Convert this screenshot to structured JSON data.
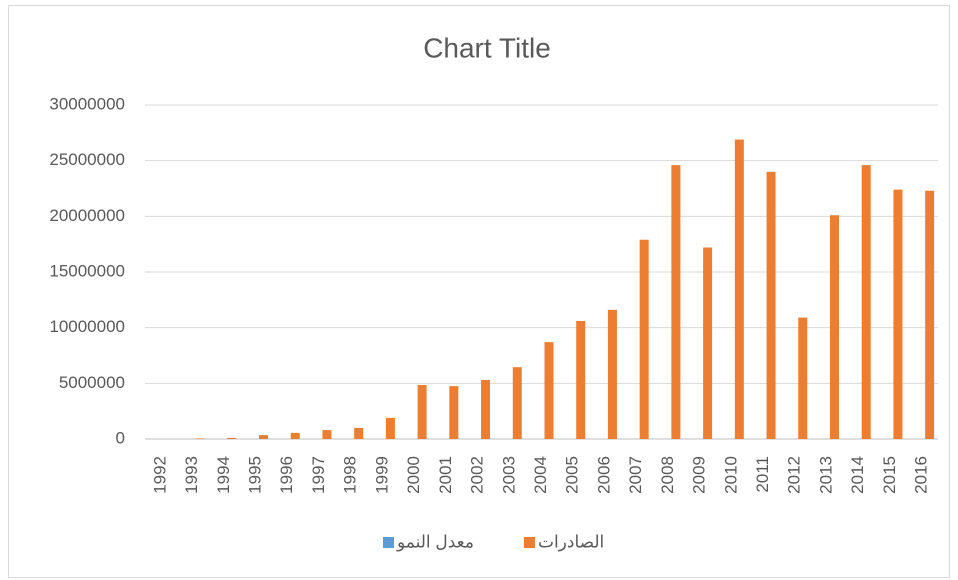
{
  "chart_data": {
    "type": "bar",
    "title": "Chart Title",
    "categories": [
      "1992",
      "1993",
      "1994",
      "1995",
      "1996",
      "1997",
      "1998",
      "1999",
      "2000",
      "2001",
      "2002",
      "2003",
      "2004",
      "2005",
      "2006",
      "2007",
      "2008",
      "2009",
      "2010",
      "2011",
      "2012",
      "2013",
      "2014",
      "2015",
      "2016"
    ],
    "series": [
      {
        "name": "معدل النمو",
        "color": "#5b9bd5",
        "values": [
          0,
          0,
          0,
          0,
          0,
          0,
          0,
          0,
          0,
          0,
          0,
          0,
          0,
          0,
          0,
          0,
          0,
          0,
          0,
          0,
          0,
          0,
          0,
          0,
          0
        ]
      },
      {
        "name": "الصادرات",
        "color": "#ed7d31",
        "values": [
          0,
          50000,
          100000,
          350000,
          550000,
          800000,
          1000000,
          1900000,
          4850000,
          4750000,
          5300000,
          6450000,
          8700000,
          10600000,
          11600000,
          17900000,
          24600000,
          17200000,
          26900000,
          24000000,
          10900000,
          20100000,
          24600000,
          22400000,
          22300000
        ]
      }
    ],
    "ylim": [
      0,
      30000000
    ],
    "yticks": [
      0,
      5000000,
      10000000,
      15000000,
      20000000,
      25000000,
      30000000
    ],
    "grid": true,
    "legend": "bottom"
  }
}
